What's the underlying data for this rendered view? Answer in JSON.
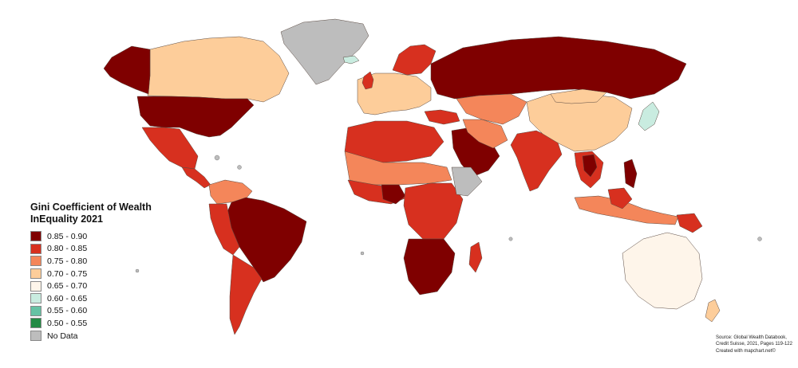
{
  "legend": {
    "title": "Gini Coefficient of Wealth\nInEquality 2021",
    "items": [
      {
        "label": "0.85 - 0.90",
        "color": "#7f0000"
      },
      {
        "label": "0.80 - 0.85",
        "color": "#d7301f"
      },
      {
        "label": "0.75 - 0.80",
        "color": "#f4865a"
      },
      {
        "label": "0.70 - 0.75",
        "color": "#fdcd9a"
      },
      {
        "label": "0.65 - 0.70",
        "color": "#fef5ea"
      },
      {
        "label": "0.60 - 0.65",
        "color": "#c9ece0"
      },
      {
        "label": "0.55 - 0.60",
        "color": "#66c2a4"
      },
      {
        "label": "0.50 - 0.55",
        "color": "#238b45"
      },
      {
        "label": "No Data",
        "color": "#bdbdbd"
      }
    ]
  },
  "source": {
    "line1": "Source: Global Wealth Databook,",
    "line2": "Credit Suisse, 2021, Pages 119-122",
    "line3": "Created with mapchart.net©"
  },
  "colors": {
    "dark_red": "#7f0000",
    "red": "#d7301f",
    "orange": "#f4865a",
    "peach": "#fdcd9a",
    "cream": "#fef5ea",
    "mint": "#c9ece0",
    "teal": "#66c2a4",
    "green": "#238b45",
    "no_data": "#bdbdbd"
  }
}
